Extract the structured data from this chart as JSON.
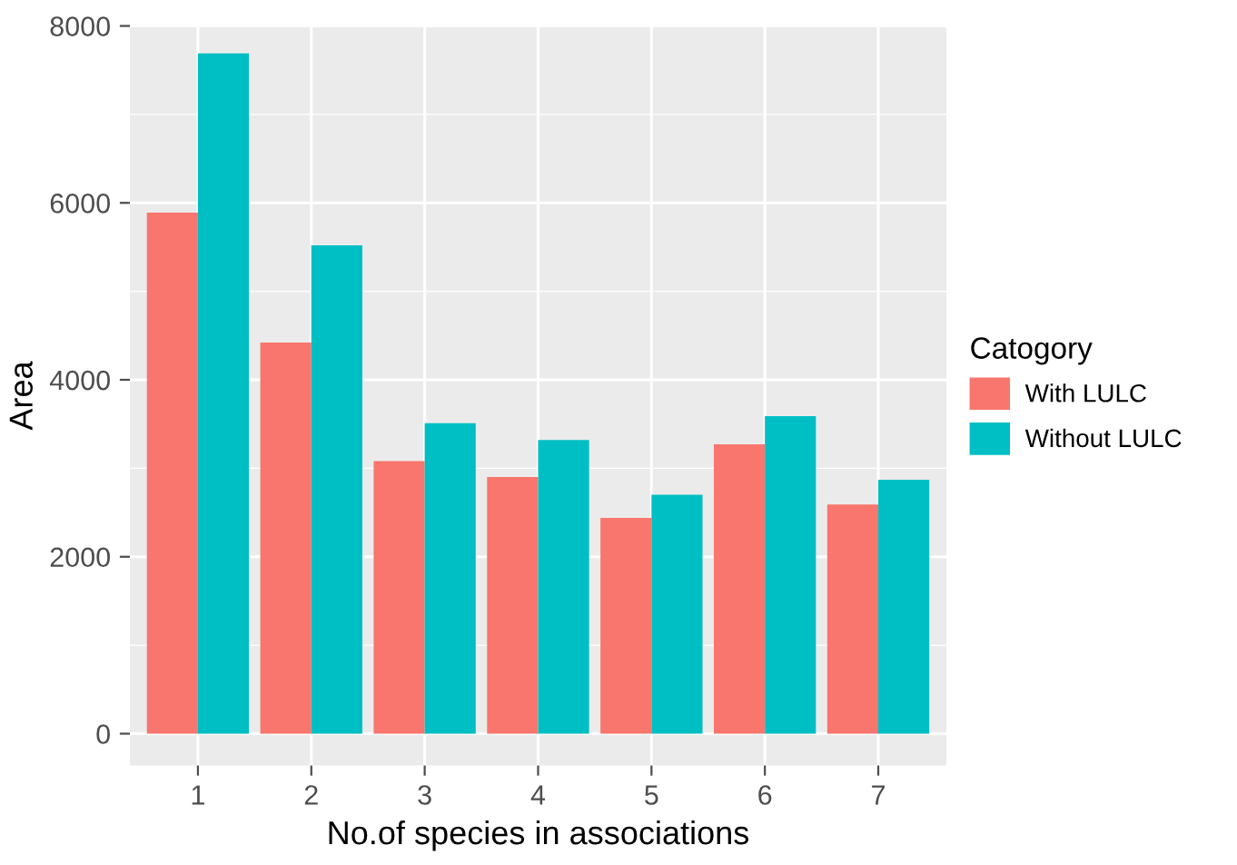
{
  "chart_data": {
    "type": "bar",
    "xlabel": "No.of species in associations",
    "ylabel": "Area",
    "legend_title": "Catogory",
    "categories": [
      "1",
      "2",
      "3",
      "4",
      "5",
      "6",
      "7"
    ],
    "series": [
      {
        "name": "With LULC",
        "color": "#f8766d",
        "values": [
          5890,
          4420,
          3080,
          2900,
          2440,
          3270,
          2590
        ]
      },
      {
        "name": "Without LULC",
        "color": "#00bfc4",
        "values": [
          7690,
          5520,
          3510,
          3320,
          2700,
          3590,
          2870
        ]
      }
    ],
    "ylim": [
      -360,
      8000
    ],
    "yticks": [
      0,
      2000,
      4000,
      6000,
      8000
    ],
    "grid": true,
    "legend": "right"
  }
}
